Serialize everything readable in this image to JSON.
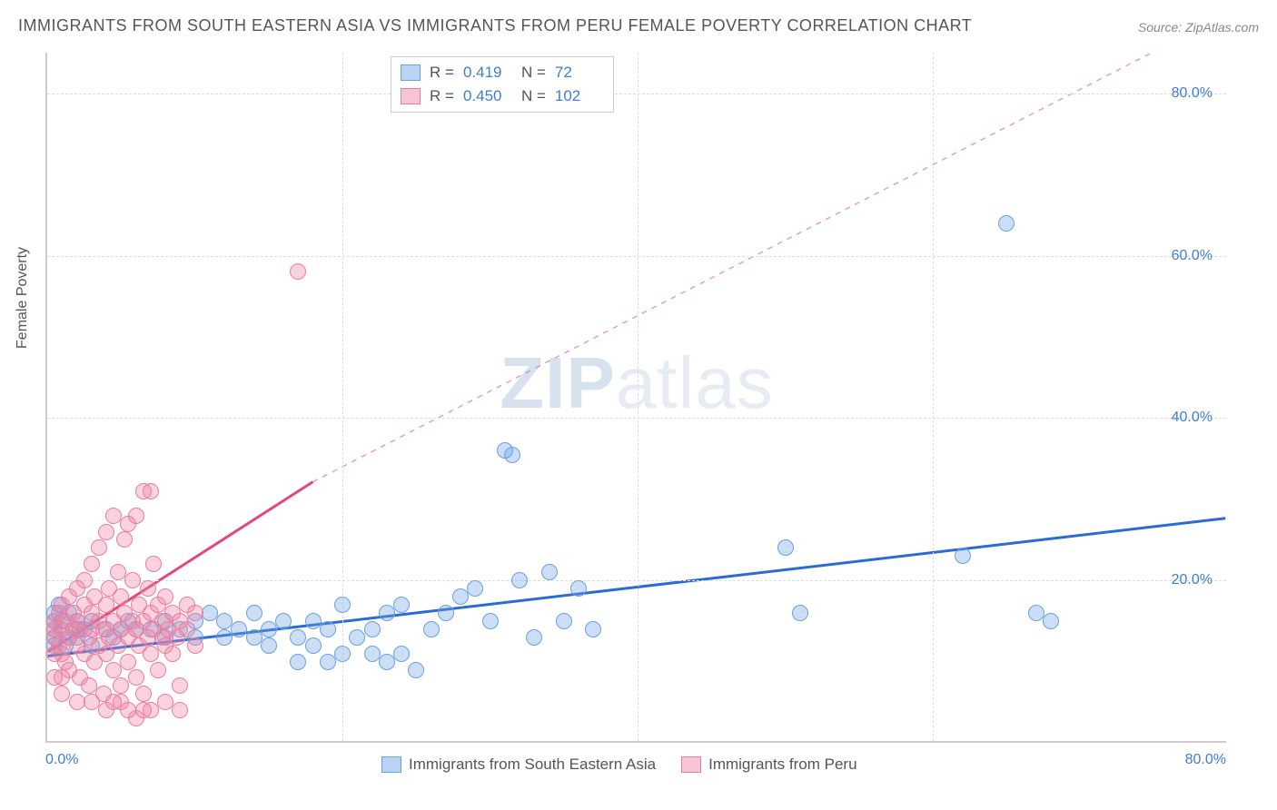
{
  "title": "IMMIGRANTS FROM SOUTH EASTERN ASIA VS IMMIGRANTS FROM PERU FEMALE POVERTY CORRELATION CHART",
  "source": "Source: ZipAtlas.com",
  "yaxis_label": "Female Poverty",
  "watermark_bold": "ZIP",
  "watermark_rest": "atlas",
  "chart": {
    "type": "scatter",
    "xlim": [
      0,
      80
    ],
    "ylim": [
      0,
      85
    ],
    "ytick_labels": [
      "20.0%",
      "40.0%",
      "60.0%",
      "80.0%"
    ],
    "ytick_values": [
      20,
      40,
      60,
      80
    ],
    "xtick_left": "0.0%",
    "xtick_right": "80.0%",
    "grid_color": "#dddddd",
    "background": "#ffffff"
  },
  "series": [
    {
      "name": "Immigrants from South Eastern Asia",
      "fill": "rgba(107,160,227,0.35)",
      "stroke": "#6ba0e3",
      "swatch_fill": "#b9d3f2",
      "swatch_border": "#6ba0e3",
      "marker_r": 9,
      "R": "0.419",
      "N": "72",
      "trend": {
        "x1": 0,
        "y1": 10.5,
        "x2": 80,
        "y2": 27.5,
        "color": "#2b6bd4",
        "width": 3
      },
      "points": [
        [
          0.5,
          14
        ],
        [
          0.5,
          15
        ],
        [
          0.5,
          13
        ],
        [
          0.5,
          16
        ],
        [
          0.5,
          12
        ],
        [
          1,
          14
        ],
        [
          1,
          15
        ],
        [
          1.5,
          13
        ],
        [
          1.5,
          16
        ],
        [
          2,
          15
        ],
        [
          2,
          14
        ],
        [
          2,
          13
        ],
        [
          2.5,
          14
        ],
        [
          3,
          12
        ],
        [
          3,
          15
        ],
        [
          4,
          14
        ],
        [
          4.5,
          13
        ],
        [
          5,
          14
        ],
        [
          5.5,
          15
        ],
        [
          6,
          14
        ],
        [
          7,
          14
        ],
        [
          8,
          13
        ],
        [
          8,
          15
        ],
        [
          9,
          14
        ],
        [
          10,
          13
        ],
        [
          10,
          15
        ],
        [
          11,
          16
        ],
        [
          12,
          13
        ],
        [
          12,
          15
        ],
        [
          13,
          14
        ],
        [
          14,
          13
        ],
        [
          14,
          16
        ],
        [
          15,
          12
        ],
        [
          15,
          14
        ],
        [
          16,
          15
        ],
        [
          17,
          10
        ],
        [
          17,
          13
        ],
        [
          18,
          12
        ],
        [
          18,
          15
        ],
        [
          19,
          10
        ],
        [
          19,
          14
        ],
        [
          20,
          17
        ],
        [
          20,
          11
        ],
        [
          21,
          13
        ],
        [
          22,
          11
        ],
        [
          22,
          14
        ],
        [
          23,
          10
        ],
        [
          23,
          16
        ],
        [
          24,
          11
        ],
        [
          24,
          17
        ],
        [
          25,
          9
        ],
        [
          26,
          14
        ],
        [
          27,
          16
        ],
        [
          28,
          18
        ],
        [
          29,
          19
        ],
        [
          30,
          15
        ],
        [
          31,
          36
        ],
        [
          31.5,
          35.5
        ],
        [
          32,
          20
        ],
        [
          33,
          13
        ],
        [
          34,
          21
        ],
        [
          35,
          15
        ],
        [
          36,
          19
        ],
        [
          37,
          14
        ],
        [
          50,
          24
        ],
        [
          51,
          16
        ],
        [
          62,
          23
        ],
        [
          65,
          64
        ],
        [
          67,
          16
        ],
        [
          68,
          15
        ],
        [
          0.8,
          17
        ],
        [
          1.2,
          12
        ]
      ]
    },
    {
      "name": "Immigrants from Peru",
      "fill": "rgba(240,130,160,0.35)",
      "stroke": "#e87da0",
      "swatch_fill": "#f6c5d5",
      "swatch_border": "#e87da0",
      "marker_r": 9,
      "R": "0.450",
      "N": "102",
      "trend_solid": {
        "x1": 0,
        "y1": 11,
        "x2": 18,
        "y2": 32,
        "color": "#e04a7a",
        "width": 3
      },
      "trend_dashed": {
        "x1": 18,
        "y2_end": 85,
        "x2": 75,
        "color": "#e8a0b8",
        "width": 1.5,
        "y1": 32,
        "y2": 85
      },
      "points": [
        [
          0.5,
          13
        ],
        [
          0.5,
          14
        ],
        [
          0.5,
          15
        ],
        [
          0.8,
          12
        ],
        [
          0.8,
          16
        ],
        [
          1,
          11
        ],
        [
          1,
          14
        ],
        [
          1,
          17
        ],
        [
          1.2,
          10
        ],
        [
          1.2,
          15
        ],
        [
          1.5,
          13
        ],
        [
          1.5,
          18
        ],
        [
          1.5,
          9
        ],
        [
          1.8,
          14
        ],
        [
          1.8,
          16
        ],
        [
          2,
          12
        ],
        [
          2,
          15
        ],
        [
          2,
          19
        ],
        [
          2.2,
          8
        ],
        [
          2.2,
          14
        ],
        [
          2.5,
          11
        ],
        [
          2.5,
          17
        ],
        [
          2.5,
          20
        ],
        [
          2.8,
          13
        ],
        [
          2.8,
          7
        ],
        [
          3,
          14
        ],
        [
          3,
          16
        ],
        [
          3,
          22
        ],
        [
          3.2,
          10
        ],
        [
          3.2,
          18
        ],
        [
          3.5,
          12
        ],
        [
          3.5,
          15
        ],
        [
          3.5,
          24
        ],
        [
          3.8,
          6
        ],
        [
          3.8,
          14
        ],
        [
          4,
          11
        ],
        [
          4,
          17
        ],
        [
          4,
          26
        ],
        [
          4.2,
          13
        ],
        [
          4.2,
          19
        ],
        [
          4.5,
          9
        ],
        [
          4.5,
          15
        ],
        [
          4.5,
          28
        ],
        [
          4.8,
          12
        ],
        [
          4.8,
          21
        ],
        [
          5,
          14
        ],
        [
          5,
          18
        ],
        [
          5,
          7
        ],
        [
          5.2,
          16
        ],
        [
          5.2,
          25
        ],
        [
          5.5,
          10
        ],
        [
          5.5,
          13
        ],
        [
          5.5,
          27
        ],
        [
          5.8,
          15
        ],
        [
          5.8,
          20
        ],
        [
          6,
          8
        ],
        [
          6,
          14
        ],
        [
          6,
          28
        ],
        [
          6.2,
          17
        ],
        [
          6.2,
          12
        ],
        [
          6.5,
          6
        ],
        [
          6.5,
          15
        ],
        [
          6.5,
          31
        ],
        [
          6.8,
          13
        ],
        [
          6.8,
          19
        ],
        [
          7,
          11
        ],
        [
          7,
          16
        ],
        [
          7,
          31
        ],
        [
          7.2,
          14
        ],
        [
          7.2,
          22
        ],
        [
          7.5,
          9
        ],
        [
          7.5,
          17
        ],
        [
          7.8,
          13
        ],
        [
          7.8,
          15
        ],
        [
          8,
          12
        ],
        [
          8,
          18
        ],
        [
          8.2,
          14
        ],
        [
          8.5,
          11
        ],
        [
          8.5,
          16
        ],
        [
          8.8,
          13
        ],
        [
          9,
          15
        ],
        [
          9,
          7
        ],
        [
          9.5,
          14
        ],
        [
          9.5,
          17
        ],
        [
          10,
          12
        ],
        [
          10,
          16
        ],
        [
          3,
          5
        ],
        [
          4,
          4
        ],
        [
          5,
          5
        ],
        [
          6,
          3
        ],
        [
          7,
          4
        ],
        [
          8,
          5
        ],
        [
          9,
          4
        ],
        [
          2,
          5
        ],
        [
          1,
          6
        ],
        [
          0.5,
          8
        ],
        [
          0.5,
          11
        ],
        [
          1,
          8
        ],
        [
          4.5,
          5
        ],
        [
          5.5,
          4
        ],
        [
          6.5,
          4
        ],
        [
          17,
          58
        ]
      ]
    }
  ],
  "bottom_legend": [
    {
      "label": "Immigrants from South Eastern Asia",
      "fill": "#b9d3f2",
      "border": "#6ba0e3"
    },
    {
      "label": "Immigrants from Peru",
      "fill": "#f6c5d5",
      "border": "#e87da0"
    }
  ]
}
